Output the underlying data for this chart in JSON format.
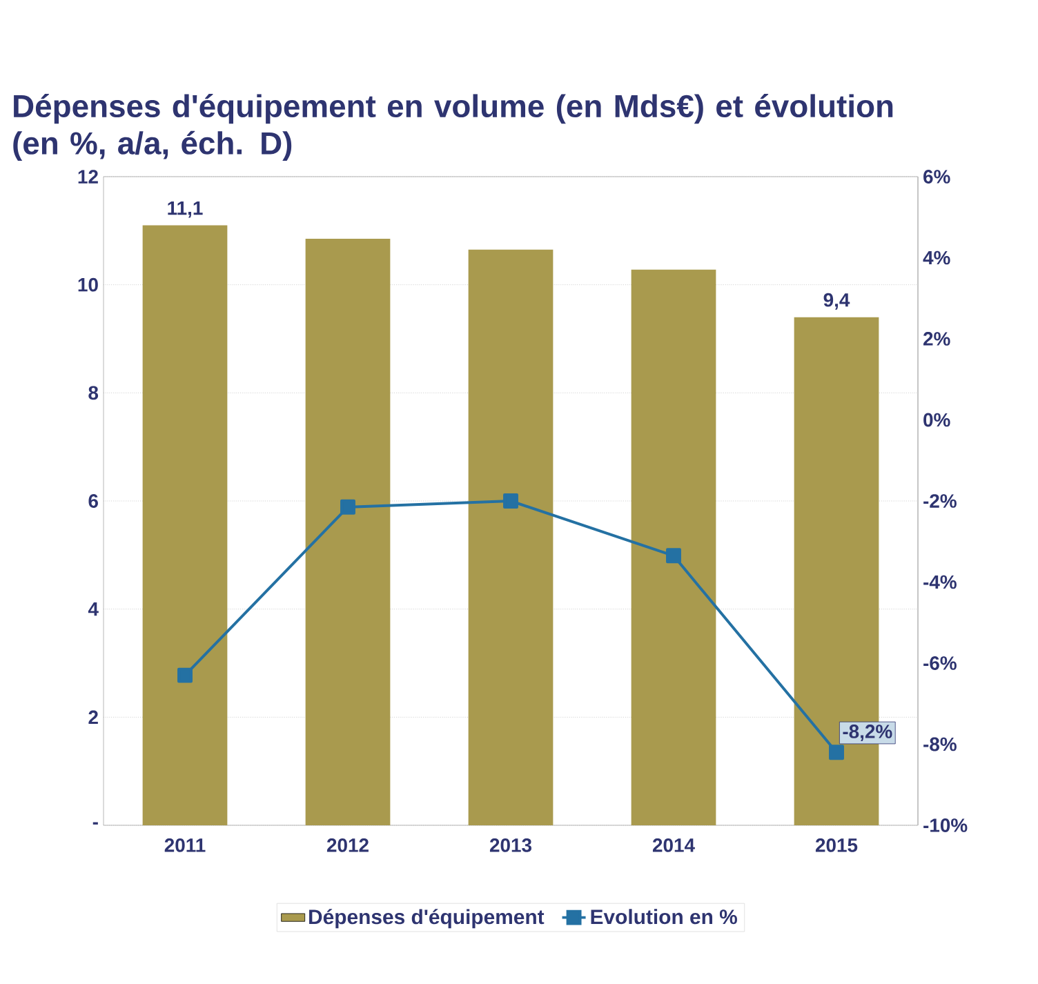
{
  "chart_data": {
    "type": "bar",
    "title": "Dépenses d'équipement en volume (en Mds€) et évolution (en %, a/a, éch. D)",
    "categories": [
      "2011",
      "2012",
      "2013",
      "2014",
      "2015"
    ],
    "series": [
      {
        "name": "Dépenses d'équipement",
        "color": "#a99a4e",
        "values": [
          11.1,
          10.85,
          10.65,
          10.28,
          9.4
        ],
        "value_labels": [
          "11,1",
          null,
          null,
          null,
          "9,4"
        ]
      },
      {
        "name": "Evolution en %",
        "type": "line",
        "axis": "y2",
        "color": "#2471a3",
        "marker": "square",
        "values": [
          -6.3,
          -2.15,
          -2.0,
          -3.35,
          -8.2
        ],
        "value_labels": [
          null,
          null,
          null,
          null,
          "-8,2%"
        ]
      }
    ],
    "ylim": [
      0,
      12
    ],
    "yticks": [
      {
        "value": 0,
        "label": "-"
      },
      2,
      4,
      6,
      8,
      10,
      12
    ],
    "y2lim": [
      -10,
      6
    ],
    "y2ticks": [
      {
        "value": -10,
        "label": "-10%"
      },
      {
        "value": -8,
        "label": "-8%"
      },
      {
        "value": -6,
        "label": "-6%"
      },
      {
        "value": -4,
        "label": "-4%"
      },
      {
        "value": -2,
        "label": "-2%"
      },
      {
        "value": 0,
        "label": "0%"
      },
      {
        "value": 2,
        "label": "2%"
      },
      {
        "value": 4,
        "label": "4%"
      },
      {
        "value": 6,
        "label": "6%"
      }
    ],
    "grid": "y",
    "legend": "bottom"
  }
}
